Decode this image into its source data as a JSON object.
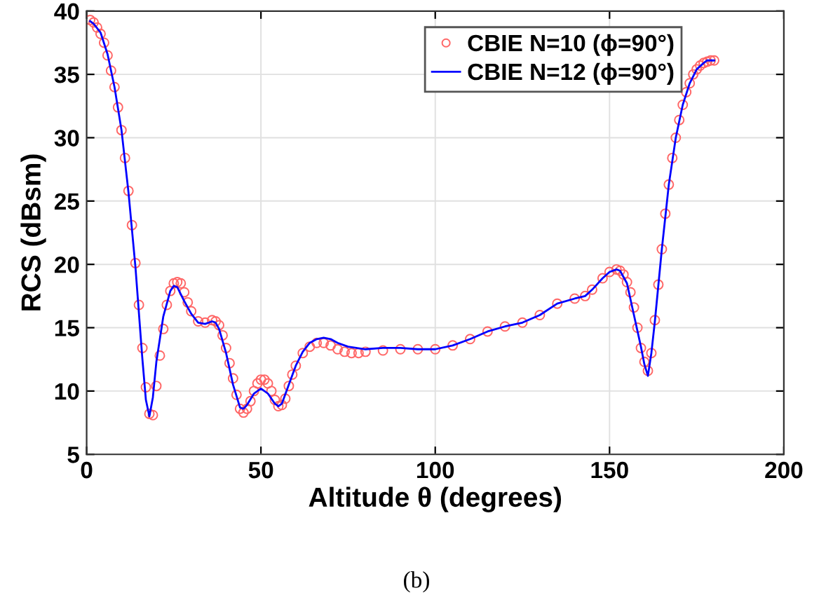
{
  "chart_data": {
    "type": "line",
    "xlabel": "Altitude θ (degrees)",
    "ylabel": "RCS (dBsm)",
    "annotations": [
      "(b)"
    ],
    "xlim": [
      0,
      200
    ],
    "xticks": [
      0,
      50,
      100,
      150,
      200
    ],
    "ylim": [
      5,
      40
    ],
    "yticks": [
      5,
      10,
      15,
      20,
      25,
      30,
      35,
      40
    ],
    "grid": true,
    "legend": "top right",
    "series": [
      {
        "name": "CBIE N=10 (ϕ=90°)",
        "type": "scatter",
        "marker": "circle",
        "color": "#ff6666",
        "x": [
          1,
          2,
          3,
          4,
          5,
          6,
          7,
          8,
          9,
          10,
          11,
          12,
          13,
          14,
          15,
          16,
          17,
          18,
          19,
          20,
          21,
          22,
          23,
          24,
          25,
          26,
          27,
          28,
          29,
          30,
          32,
          34,
          36,
          37,
          38,
          39,
          40,
          41,
          42,
          43,
          44,
          45,
          46,
          47,
          48,
          49,
          50,
          51,
          52,
          53,
          54,
          55,
          56,
          57,
          58,
          59,
          60,
          62,
          64,
          66,
          68,
          70,
          72,
          74,
          76,
          78,
          80,
          85,
          90,
          95,
          100,
          105,
          110,
          115,
          120,
          125,
          130,
          135,
          140,
          143,
          145,
          148,
          150,
          152,
          153,
          154,
          155,
          156,
          157,
          158,
          159,
          160,
          161,
          162,
          163,
          164,
          165,
          166,
          167,
          168,
          169,
          170,
          171,
          172,
          173,
          174,
          175,
          176,
          177,
          178,
          179,
          180
        ],
        "values": [
          39.3,
          39.1,
          38.7,
          38.2,
          37.5,
          36.5,
          35.3,
          34.0,
          32.4,
          30.6,
          28.4,
          25.8,
          23.1,
          20.1,
          16.8,
          13.4,
          10.3,
          8.2,
          8.1,
          10.4,
          12.8,
          14.9,
          16.8,
          17.9,
          18.5,
          18.6,
          18.5,
          17.8,
          17.0,
          16.3,
          15.5,
          15.4,
          15.6,
          15.5,
          15.2,
          14.4,
          13.4,
          12.2,
          11.0,
          9.7,
          8.6,
          8.3,
          8.6,
          9.2,
          10.0,
          10.6,
          10.9,
          10.9,
          10.6,
          10.0,
          9.3,
          8.8,
          8.9,
          9.4,
          10.4,
          11.3,
          12.0,
          13.0,
          13.5,
          13.8,
          13.8,
          13.6,
          13.3,
          13.1,
          13.0,
          13.0,
          13.1,
          13.2,
          13.3,
          13.3,
          13.3,
          13.6,
          14.1,
          14.7,
          15.1,
          15.4,
          16.0,
          16.9,
          17.3,
          17.5,
          18.0,
          18.9,
          19.4,
          19.6,
          19.5,
          19.2,
          18.6,
          17.8,
          16.6,
          15.0,
          13.4,
          12.3,
          11.6,
          13.0,
          15.6,
          18.4,
          21.2,
          24.0,
          26.3,
          28.4,
          30.0,
          31.4,
          32.6,
          33.6,
          34.3,
          35.0,
          35.4,
          35.7,
          35.9,
          36.0,
          36.1,
          36.1
        ]
      },
      {
        "name": "CBIE N=12 (ϕ=90°)",
        "marker": "none",
        "color": "#0000ff",
        "x": [
          1,
          2,
          4,
          6,
          8,
          10,
          12,
          14,
          16,
          17,
          18,
          19,
          20,
          22,
          24,
          25,
          26,
          28,
          30,
          32,
          34,
          36,
          37,
          38,
          40,
          42,
          44,
          45,
          46,
          48,
          50,
          52,
          54,
          55,
          56,
          58,
          60,
          62,
          64,
          66,
          68,
          70,
          72,
          75,
          80,
          85,
          90,
          95,
          100,
          105,
          110,
          115,
          120,
          125,
          130,
          135,
          140,
          143,
          145,
          148,
          150,
          152,
          153,
          155,
          157,
          159,
          160,
          161,
          162,
          163,
          165,
          167,
          169,
          171,
          173,
          175,
          177,
          178,
          180
        ],
        "values": [
          39.2,
          39.0,
          38.3,
          36.6,
          34.0,
          30.6,
          25.7,
          19.8,
          12.5,
          9.3,
          8.0,
          9.5,
          12.3,
          15.9,
          17.9,
          18.3,
          18.2,
          17.1,
          16.1,
          15.4,
          15.3,
          15.5,
          15.4,
          14.9,
          13.0,
          10.5,
          8.7,
          8.6,
          8.9,
          9.8,
          10.2,
          9.8,
          9.0,
          8.8,
          9.0,
          10.5,
          12.0,
          13.1,
          13.8,
          14.1,
          14.2,
          14.1,
          13.8,
          13.5,
          13.3,
          13.4,
          13.4,
          13.3,
          13.3,
          13.6,
          14.1,
          14.7,
          15.1,
          15.4,
          16.0,
          16.9,
          17.3,
          17.5,
          18.0,
          18.9,
          19.4,
          19.6,
          19.5,
          18.5,
          16.0,
          13.5,
          12.1,
          11.2,
          13.0,
          15.5,
          21.2,
          26.3,
          30.0,
          32.6,
          34.3,
          35.4,
          35.9,
          36.1,
          36.1
        ]
      }
    ]
  }
}
